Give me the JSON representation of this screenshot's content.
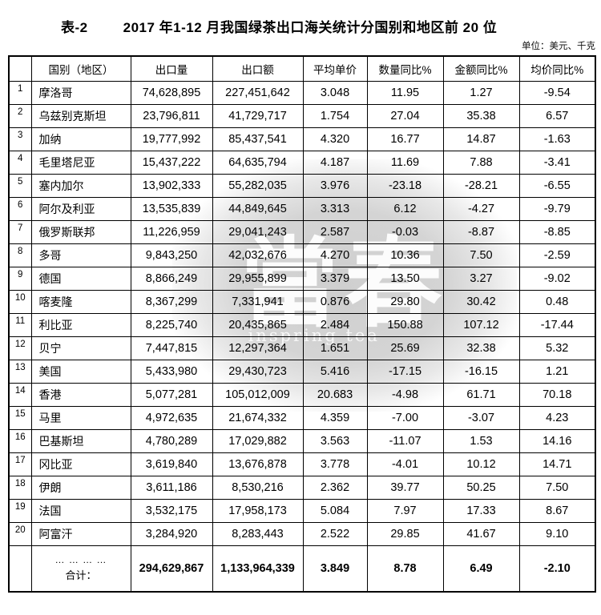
{
  "header": {
    "table_label": "表-2",
    "title": "2017 年1-12 月我国绿茶出口海关统计分国别和地区前 20 位",
    "unit_note": "单位：美元、千克"
  },
  "table": {
    "headers": [
      "国别（地区）",
      "出口量",
      "出口额",
      "平均单价",
      "数量同比%",
      "金额同比%",
      "均价同比%"
    ],
    "rows": [
      {
        "rank": "1",
        "country": "摩洛哥",
        "export_qty": "74,628,895",
        "export_value": "227,451,642",
        "avg_price": "3.048",
        "qty_yoy": "11.95",
        "value_yoy": "1.27",
        "price_yoy": "-9.54"
      },
      {
        "rank": "2",
        "country": "乌兹别克斯坦",
        "export_qty": "23,796,811",
        "export_value": "41,729,717",
        "avg_price": "1.754",
        "qty_yoy": "27.04",
        "value_yoy": "35.38",
        "price_yoy": "6.57"
      },
      {
        "rank": "3",
        "country": "加纳",
        "export_qty": "19,777,992",
        "export_value": "85,437,541",
        "avg_price": "4.320",
        "qty_yoy": "16.77",
        "value_yoy": "14.87",
        "price_yoy": "-1.63"
      },
      {
        "rank": "4",
        "country": "毛里塔尼亚",
        "export_qty": "15,437,222",
        "export_value": "64,635,794",
        "avg_price": "4.187",
        "qty_yoy": "11.69",
        "value_yoy": "7.88",
        "price_yoy": "-3.41"
      },
      {
        "rank": "5",
        "country": "塞内加尔",
        "export_qty": "13,902,333",
        "export_value": "55,282,035",
        "avg_price": "3.976",
        "qty_yoy": "-23.18",
        "value_yoy": "-28.21",
        "price_yoy": "-6.55"
      },
      {
        "rank": "6",
        "country": "阿尔及利亚",
        "export_qty": "13,535,839",
        "export_value": "44,849,645",
        "avg_price": "3.313",
        "qty_yoy": "6.12",
        "value_yoy": "-4.27",
        "price_yoy": "-9.79"
      },
      {
        "rank": "7",
        "country": "俄罗斯联邦",
        "export_qty": "11,226,959",
        "export_value": "29,041,243",
        "avg_price": "2.587",
        "qty_yoy": "-0.03",
        "value_yoy": "-8.87",
        "price_yoy": "-8.85"
      },
      {
        "rank": "8",
        "country": "多哥",
        "export_qty": "9,843,250",
        "export_value": "42,032,676",
        "avg_price": "4.270",
        "qty_yoy": "10.36",
        "value_yoy": "7.50",
        "price_yoy": "-2.59"
      },
      {
        "rank": "9",
        "country": "德国",
        "export_qty": "8,866,249",
        "export_value": "29,955,899",
        "avg_price": "3.379",
        "qty_yoy": "13.50",
        "value_yoy": "3.27",
        "price_yoy": "-9.02"
      },
      {
        "rank": "10",
        "country": "喀麦隆",
        "export_qty": "8,367,299",
        "export_value": "7,331,941",
        "avg_price": "0.876",
        "qty_yoy": "29.80",
        "value_yoy": "30.42",
        "price_yoy": "0.48"
      },
      {
        "rank": "11",
        "country": "利比亚",
        "export_qty": "8,225,740",
        "export_value": "20,435,865",
        "avg_price": "2.484",
        "qty_yoy": "150.88",
        "value_yoy": "107.12",
        "price_yoy": "-17.44"
      },
      {
        "rank": "12",
        "country": "贝宁",
        "export_qty": "7,447,815",
        "export_value": "12,297,364",
        "avg_price": "1.651",
        "qty_yoy": "25.69",
        "value_yoy": "32.38",
        "price_yoy": "5.32"
      },
      {
        "rank": "13",
        "country": "美国",
        "export_qty": "5,433,980",
        "export_value": "29,430,723",
        "avg_price": "5.416",
        "qty_yoy": "-17.15",
        "value_yoy": "-16.15",
        "price_yoy": "1.21"
      },
      {
        "rank": "14",
        "country": "香港",
        "export_qty": "5,077,281",
        "export_value": "105,012,009",
        "avg_price": "20.683",
        "qty_yoy": "-4.98",
        "value_yoy": "61.71",
        "price_yoy": "70.18"
      },
      {
        "rank": "15",
        "country": "马里",
        "export_qty": "4,972,635",
        "export_value": "21,674,332",
        "avg_price": "4.359",
        "qty_yoy": "-7.00",
        "value_yoy": "-3.07",
        "price_yoy": "4.23"
      },
      {
        "rank": "16",
        "country": "巴基斯坦",
        "export_qty": "4,780,289",
        "export_value": "17,029,882",
        "avg_price": "3.563",
        "qty_yoy": "-11.07",
        "value_yoy": "1.53",
        "price_yoy": "14.16"
      },
      {
        "rank": "17",
        "country": "冈比亚",
        "export_qty": "3,619,840",
        "export_value": "13,676,878",
        "avg_price": "3.778",
        "qty_yoy": "-4.01",
        "value_yoy": "10.12",
        "price_yoy": "14.71"
      },
      {
        "rank": "18",
        "country": "伊朗",
        "export_qty": "3,611,186",
        "export_value": "8,530,216",
        "avg_price": "2.362",
        "qty_yoy": "39.77",
        "value_yoy": "50.25",
        "price_yoy": "7.50"
      },
      {
        "rank": "19",
        "country": "法国",
        "export_qty": "3,532,175",
        "export_value": "17,958,173",
        "avg_price": "5.084",
        "qty_yoy": "7.97",
        "value_yoy": "17.33",
        "price_yoy": "8.67"
      },
      {
        "rank": "20",
        "country": "阿富汗",
        "export_qty": "3,284,920",
        "export_value": "8,283,443",
        "avg_price": "2.522",
        "qty_yoy": "29.85",
        "value_yoy": "41.67",
        "price_yoy": "9.10"
      }
    ],
    "total": {
      "dots": "… … … …",
      "label": "合计：",
      "export_qty": "294,629,867",
      "export_value": "1,133,964,339",
      "avg_price": "3.849",
      "qty_yoy": "8.78",
      "value_yoy": "6.49",
      "price_yoy": "-2.10"
    }
  },
  "watermark": {
    "chars": "當春",
    "subtext": "inspring tea",
    "blob_color": "#d4d4d4"
  },
  "colors": {
    "text": "#000000",
    "border": "#000000",
    "background": "#ffffff"
  }
}
